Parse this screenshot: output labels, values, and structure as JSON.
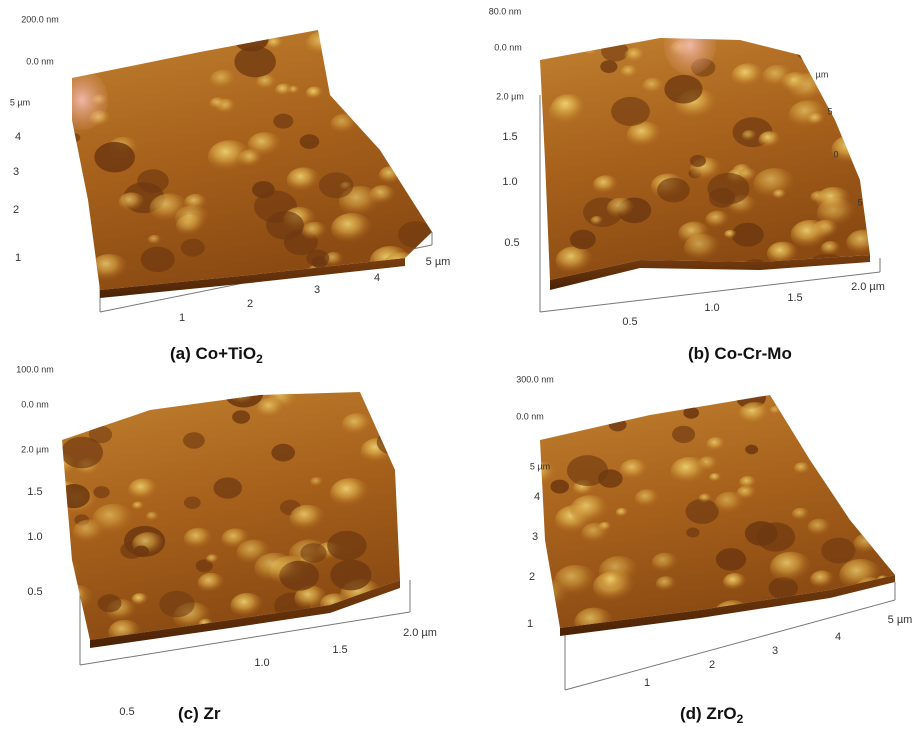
{
  "panels": [
    {
      "caption": {
        "main": "(a) Co+TiO",
        "sub": "2"
      },
      "z_labels": [
        "200.0 nm",
        "0.0 nm"
      ],
      "y_labels": [
        "5 µm",
        "4",
        "3",
        "2",
        "1"
      ],
      "x_labels": [
        "1",
        "2",
        "3",
        "4",
        "5 µm"
      ]
    },
    {
      "caption": {
        "main": "(b) Co-Cr-Mo"
      },
      "z_labels": [
        "80.0 nm",
        "0.0 nm"
      ],
      "y_labels": [
        "2.0 µm",
        "1.5",
        "1.0",
        "0.5"
      ],
      "x_labels": [
        "0.5",
        "1.0",
        "1.5",
        "2.0 µm"
      ],
      "back_labels": [
        "µm",
        "5",
        "0",
        "5"
      ]
    },
    {
      "caption": {
        "main": "(c) Zr"
      },
      "z_labels": [
        "100.0 nm",
        "0.0 nm"
      ],
      "y_labels": [
        "2.0 µm",
        "1.5",
        "1.0",
        "0.5"
      ],
      "x_labels": [
        "0.5",
        "1.0",
        "1.5",
        "2.0 µm"
      ]
    },
    {
      "caption": {
        "main": "(d) ZrO",
        "sub": "2"
      },
      "z_labels": [
        "300.0 nm",
        "0.0 nm"
      ],
      "y_labels": [
        "5 µm",
        "4",
        "3",
        "2",
        "1"
      ],
      "x_labels": [
        "1",
        "2",
        "3",
        "4",
        "5 µm"
      ]
    }
  ]
}
